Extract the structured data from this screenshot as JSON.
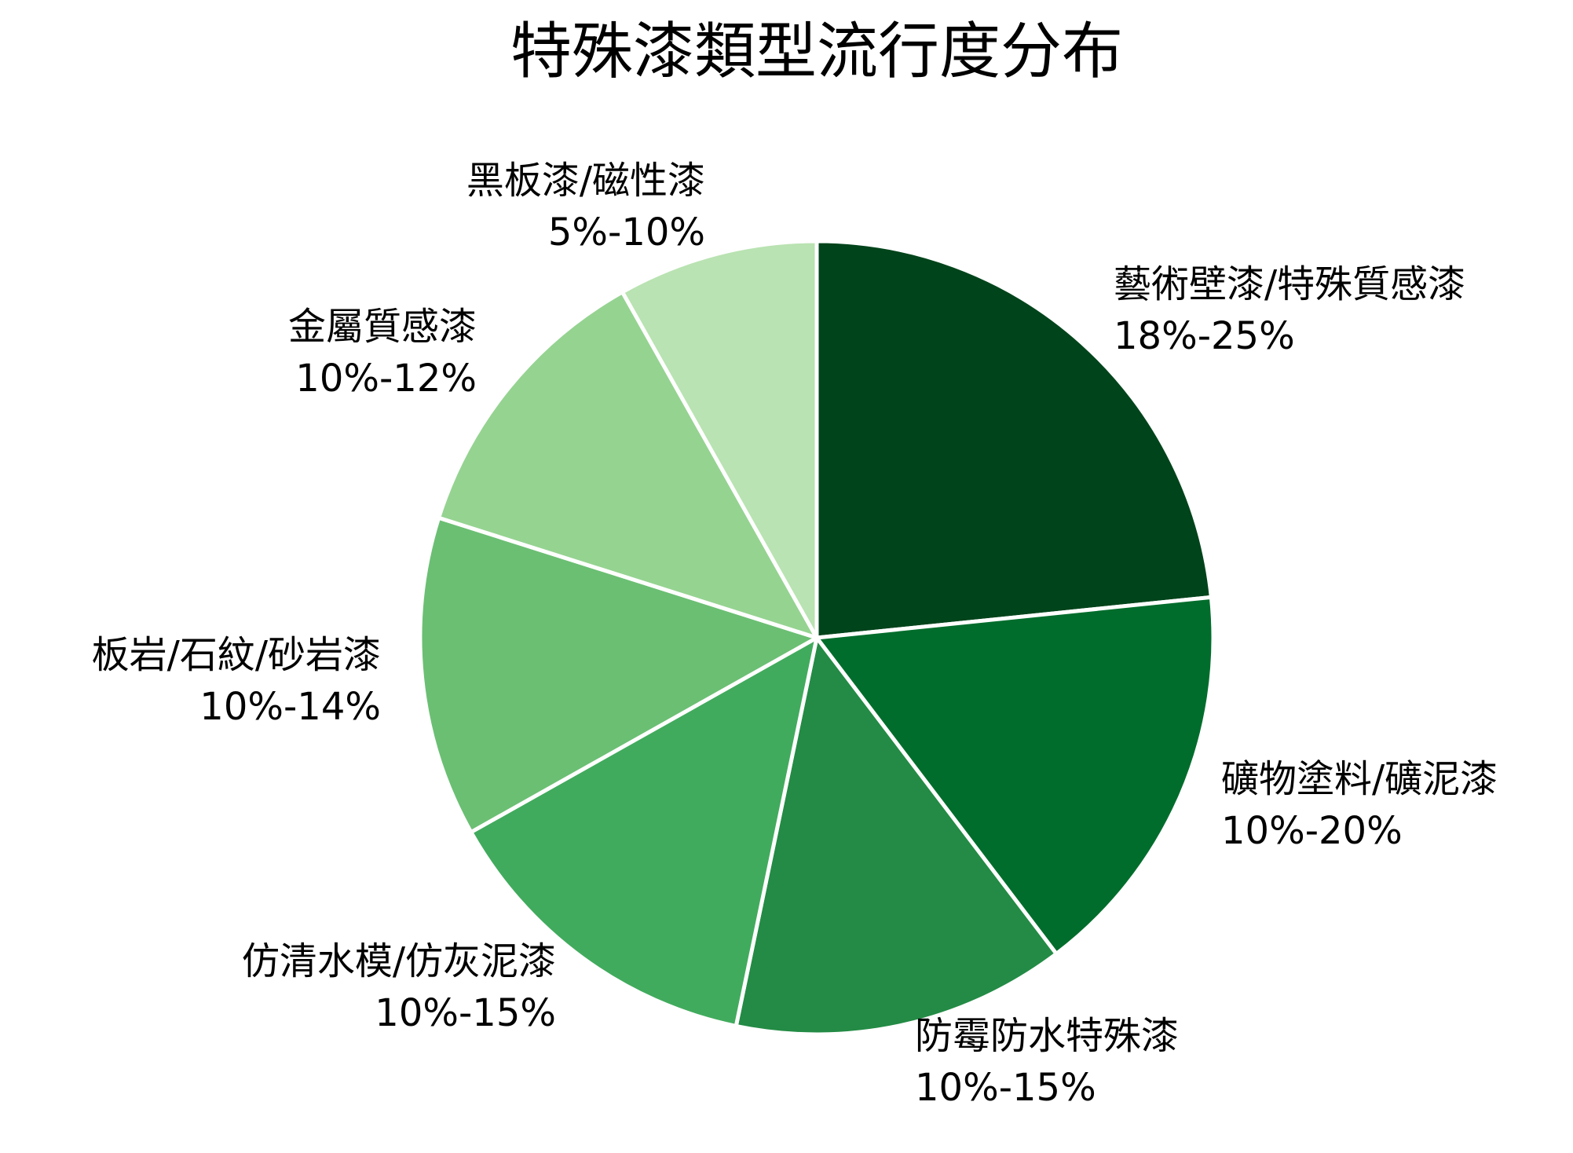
{
  "chart_data": {
    "type": "pie",
    "title": "特殊漆類型流行度分布",
    "start_angle_deg": 0,
    "direction": "clockwise",
    "slices": [
      {
        "name": "藝術壁漆/特殊質感漆",
        "range_label": "18%-25%",
        "value": 21.5,
        "color": "#00441b"
      },
      {
        "name": "礦物塗料/礦泥漆",
        "range_label": "10%-20%",
        "value": 15,
        "color": "#006d2c"
      },
      {
        "name": "防霉防水特殊漆",
        "range_label": "10%-15%",
        "value": 12.5,
        "color": "#238b45"
      },
      {
        "name": "仿清水模/仿灰泥漆",
        "range_label": "10%-15%",
        "value": 12.5,
        "color": "#41ab5d"
      },
      {
        "name": "板岩/石紋/砂岩漆",
        "range_label": "10%-14%",
        "value": 12,
        "color": "#6bbf73"
      },
      {
        "name": "金屬質感漆",
        "range_label": "10%-12%",
        "value": 11,
        "color": "#95d391"
      },
      {
        "name": "黑板漆/磁性漆",
        "range_label": "5%-10%",
        "value": 7.5,
        "color": "#b9e3b2"
      }
    ]
  }
}
